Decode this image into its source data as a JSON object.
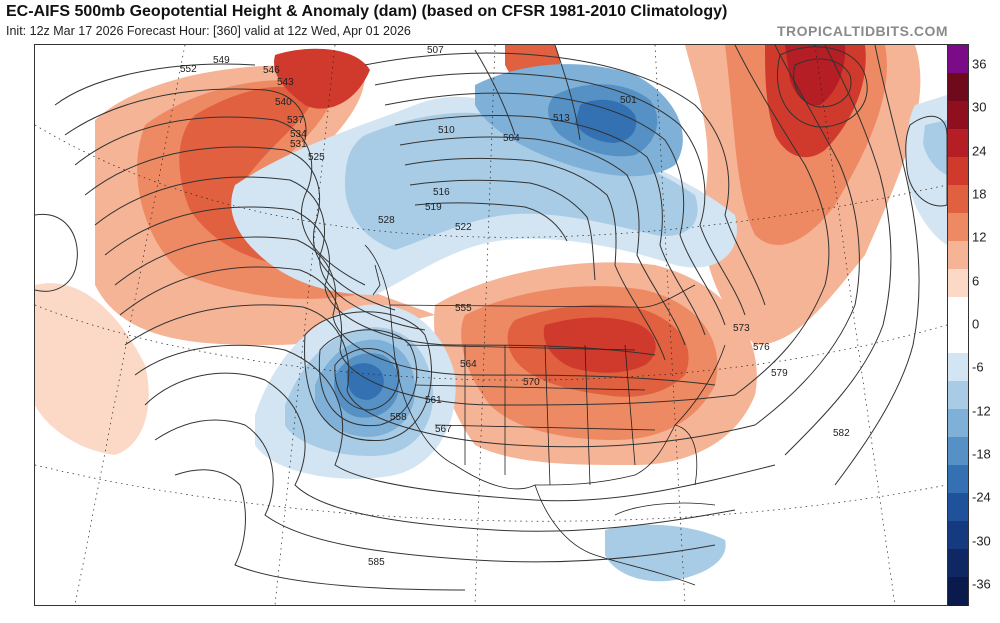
{
  "header": {
    "title": "EC-AIFS 500mb Geopotential Height & Anomaly (dam) (based on CFSR 1981-2010 Climatology)",
    "subtitle": "Init: 12z Mar 17 2026   Forecast Hour: [360]   valid at 12z Wed, Apr 01 2026",
    "brand": "TROPICALTIDBITS.COM"
  },
  "colorbar": {
    "ticks": [
      "36",
      "30",
      "24",
      "18",
      "12",
      "6",
      "0",
      "-6",
      "-12",
      "-18",
      "-24",
      "-30",
      "-36"
    ],
    "colors": [
      "#7b0b86",
      "#6e0a1c",
      "#8f0f1e",
      "#b41e24",
      "#cf3a2c",
      "#e0603f",
      "#ee8a63",
      "#f6b497",
      "#fbd9c6",
      "#ffffff",
      "#ffffff",
      "#d3e5f2",
      "#a8cce6",
      "#7fb0d8",
      "#5691c5",
      "#3471b2",
      "#1f529b",
      "#163a7f",
      "#0f2864",
      "#0b1a4d"
    ]
  },
  "contour_labels": [
    "552",
    "549",
    "546",
    "543",
    "540",
    "537",
    "534",
    "531",
    "528",
    "525",
    "522",
    "519",
    "516",
    "513",
    "510",
    "507",
    "504",
    "501",
    "555",
    "558",
    "561",
    "564",
    "567",
    "570",
    "573",
    "576",
    "579",
    "582",
    "585"
  ]
}
